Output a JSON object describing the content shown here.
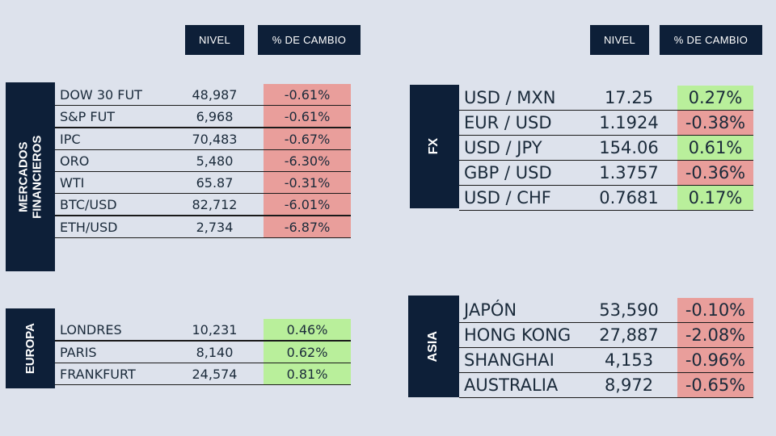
{
  "header_left": {
    "nivel": "NIVEL",
    "cambio": "% DE CAMBIO"
  },
  "header_right": {
    "nivel": "NIVEL",
    "cambio": "% DE CAMBIO"
  },
  "mercados": {
    "title": "MERCADOS FINANCIEROS",
    "rows": [
      {
        "name": "DOW 30 FUT",
        "nivel": "48,987",
        "cambio": "-0.61%",
        "status": "negative"
      },
      {
        "name": "S&P FUT",
        "nivel": "6,968",
        "cambio": "-0.61%",
        "status": "negative"
      },
      {
        "name": "IPC",
        "nivel": "70,483",
        "cambio": "-0.67%",
        "status": "negative"
      },
      {
        "name": "ORO",
        "nivel": "5,480",
        "cambio": "-6.30%",
        "status": "negative"
      },
      {
        "name": "WTI",
        "nivel": "65.87",
        "cambio": "-0.31%",
        "status": "negative"
      },
      {
        "name": "BTC/USD",
        "nivel": "82,712",
        "cambio": "-6.01%",
        "status": "negative"
      },
      {
        "name": "ETH/USD",
        "nivel": "2,734",
        "cambio": "-6.87%",
        "status": "negative"
      }
    ]
  },
  "europa": {
    "title": "EUROPA",
    "rows": [
      {
        "name": "LONDRES",
        "nivel": "10,231",
        "cambio": "0.46%",
        "status": "positive"
      },
      {
        "name": "PARIS",
        "nivel": "8,140",
        "cambio": "0.62%",
        "status": "positive"
      },
      {
        "name": "FRANKFURT",
        "nivel": "24,574",
        "cambio": "0.81%",
        "status": "positive"
      }
    ]
  },
  "fx": {
    "title": "FX",
    "rows": [
      {
        "name": "USD / MXN",
        "nivel": "17.25",
        "cambio": "0.27%",
        "status": "positive"
      },
      {
        "name": "EUR / USD",
        "nivel": "1.1924",
        "cambio": "-0.38%",
        "status": "negative"
      },
      {
        "name": "USD / JPY",
        "nivel": "154.06",
        "cambio": "0.61%",
        "status": "positive"
      },
      {
        "name": "GBP / USD",
        "nivel": "1.3757",
        "cambio": "-0.36%",
        "status": "negative"
      },
      {
        "name": "USD / CHF",
        "nivel": "0.7681",
        "cambio": "0.17%",
        "status": "positive"
      }
    ]
  },
  "asia": {
    "title": "ASIA",
    "rows": [
      {
        "name": "JAPÓN",
        "nivel": "53,590",
        "cambio": "-0.10%",
        "status": "negative"
      },
      {
        "name": "HONG KONG",
        "nivel": "27,887",
        "cambio": "-2.08%",
        "status": "negative"
      },
      {
        "name": "SHANGHAI",
        "nivel": "4,153",
        "cambio": "-0.96%",
        "status": "negative"
      },
      {
        "name": "AUSTRALIA",
        "nivel": "8,972",
        "cambio": "-0.65%",
        "status": "negative"
      }
    ]
  },
  "colors": {
    "background": "#dde2ec",
    "navy": "#0d1f38",
    "negative": "#e99e9b",
    "positive": "#b9ef9b"
  }
}
